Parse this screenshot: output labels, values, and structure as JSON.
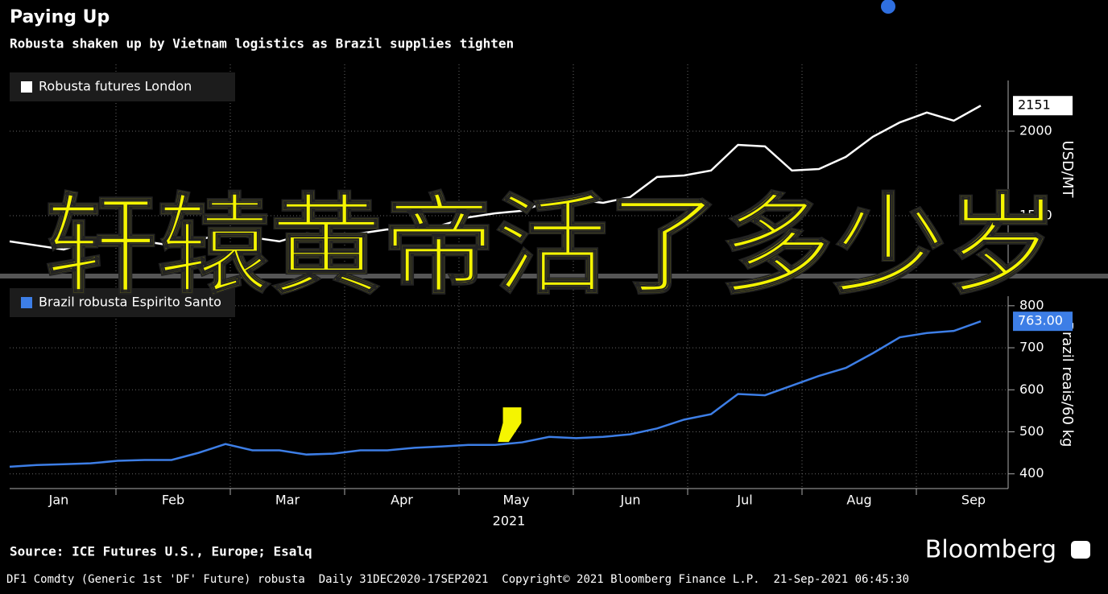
{
  "title": "Paying Up",
  "subtitle": "Robusta shaken up by Vietnam logistics as Brazil supplies tighten",
  "x_axis": {
    "categories": [
      "Jan",
      "Feb",
      "Mar",
      "Apr",
      "May",
      "Jun",
      "Jul",
      "Aug",
      "Sep"
    ],
    "year": "2021"
  },
  "chart_data": [
    {
      "type": "line",
      "series": [
        {
          "name": "Robusta futures London",
          "color": "#ffffff",
          "values": [
            1348,
            1324,
            1300,
            1348,
            1386,
            1348,
            1324,
            1357,
            1395,
            1371,
            1348,
            1395,
            1386,
            1395,
            1419,
            1405,
            1443,
            1490,
            1514,
            1529,
            1586,
            1595,
            1576,
            1610,
            1729,
            1738,
            1767,
            1919,
            1910,
            1767,
            1776,
            1848,
            1967,
            2052,
            2110,
            2062,
            2151
          ]
        }
      ],
      "ylim": [
        1157,
        2395
      ],
      "yticks": [
        1500,
        2000
      ],
      "y_label": "USD/MT",
      "grid": true
    },
    {
      "type": "line",
      "series": [
        {
          "name": "Brazil robusta Espirito Santo",
          "color": "#3d7ee6",
          "values": [
            417,
            421,
            423,
            425,
            431,
            433,
            433,
            450,
            471,
            456,
            456,
            446,
            448,
            456,
            456,
            462,
            465,
            469,
            469,
            475,
            488,
            485,
            488,
            494,
            508,
            529,
            542,
            590,
            587,
            610,
            633,
            652,
            687,
            725,
            735,
            740,
            763
          ],
          "last_value_label": "763.00"
        }
      ],
      "ylim": [
        365,
        861
      ],
      "yticks": [
        400,
        500,
        600,
        700,
        800
      ],
      "y_label": "Brazil reais/60 kg",
      "grid": true
    }
  ],
  "overlay": {
    "headline": "轩辕黄帝活了多少岁",
    "mark": ","
  },
  "source": "Source: ICE Futures U.S., Europe; Esalq",
  "brand": "Bloomberg",
  "footer": "DF1 Comdty (Generic 1st 'DF' Future) robusta  Daily 31DEC2020-17SEP2021  Copyright© 2021 Bloomberg Finance L.P.  21-Sep-2021 06:45:30"
}
